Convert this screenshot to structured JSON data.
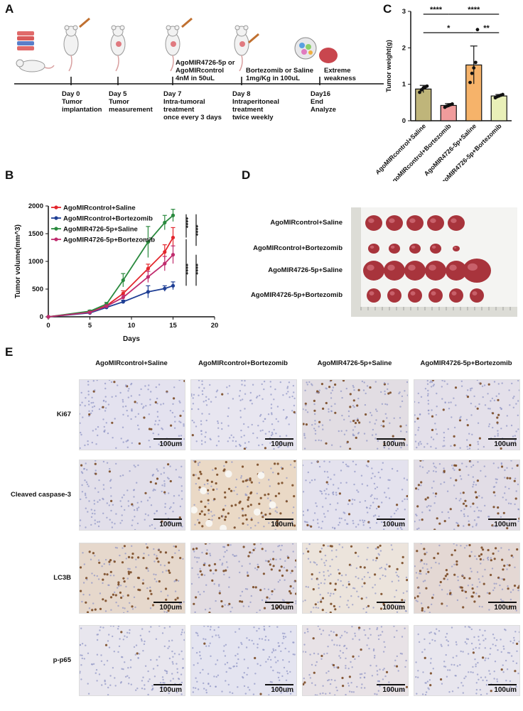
{
  "panels": {
    "a": "A",
    "b": "B",
    "c": "C",
    "d": "D",
    "e": "E"
  },
  "timeline": {
    "days": [
      {
        "day": "Day 0",
        "desc": "Tumor\nimplantation"
      },
      {
        "day": "Day 5",
        "desc": "Tumor\nmeasurement"
      },
      {
        "day": "Day 7",
        "desc": "Intra-tumoral\ntreatment\nonce every 3 days"
      },
      {
        "day": "Day 8",
        "desc": "Intraperitoneal\ntreatment\ntwice weekly"
      },
      {
        "day": "Day16",
        "desc": "End\nAnalyze"
      }
    ],
    "above": [
      "AgoMIR4726-5p or\nAgoMIRcontrol\n4nM in 50uL",
      "Bortezomib or Saline\n1mg/Kg in 100uL",
      "Extreme\nweakness"
    ],
    "colors": {
      "line": "#111111",
      "tumor": "#c9464e",
      "mouse": "#f2f2f2"
    }
  },
  "chart_data": [
    {
      "type": "line",
      "xlabel": "Days",
      "ylabel": "Tumor volume(mm^3)",
      "xlim": [
        0,
        20
      ],
      "ylim": [
        0,
        2000
      ],
      "xticks": [
        0,
        5,
        10,
        15,
        20
      ],
      "yticks": [
        0,
        500,
        1000,
        1500,
        2000
      ],
      "x": [
        0,
        5,
        7,
        9,
        12,
        14,
        15
      ],
      "series": [
        {
          "name": "AgoMIRcontrol+Saline",
          "color": "#e3262d",
          "values": [
            0,
            90,
            200,
            420,
            870,
            1170,
            1430
          ],
          "errors": [
            0,
            20,
            30,
            50,
            80,
            130,
            180
          ]
        },
        {
          "name": "AgoMIRcontrol+Bortezomib",
          "color": "#1f3f95",
          "values": [
            0,
            70,
            170,
            270,
            450,
            510,
            560
          ],
          "errors": [
            0,
            15,
            25,
            30,
            110,
            50,
            70
          ]
        },
        {
          "name": "AgoMIR4726-5p+Saline",
          "color": "#2a8a3e",
          "values": [
            0,
            100,
            230,
            660,
            1350,
            1700,
            1830
          ],
          "errors": [
            0,
            20,
            30,
            120,
            280,
            130,
            110
          ]
        },
        {
          "name": "AgoMIR4726-5p+Bortezomib",
          "color": "#c02c6e",
          "values": [
            0,
            80,
            190,
            350,
            720,
            960,
            1120
          ],
          "errors": [
            0,
            20,
            25,
            40,
            100,
            130,
            160
          ]
        }
      ],
      "significance": [
        "****",
        "****",
        "****",
        "****"
      ],
      "legend": "top-left"
    },
    {
      "type": "bar",
      "ylabel": "Tumor weight(g)",
      "ylim": [
        0,
        3
      ],
      "yticks": [
        0,
        1,
        2,
        3
      ],
      "categories": [
        "AgoMIRcontrol+Saline",
        "AgoMIRcontrol+Bortezomib",
        "AgoMIR4726-5p+Saline",
        "AgoMIR4726-5p+Bortezomib"
      ],
      "values": [
        0.87,
        0.42,
        1.53,
        0.68
      ],
      "errors": [
        0.1,
        0.05,
        0.52,
        0.04
      ],
      "colors": [
        "#bfb57a",
        "#f09c9c",
        "#f6b36a",
        "#e9f0b8"
      ],
      "points": [
        [
          0.78,
          0.85,
          0.9,
          0.92,
          0.95
        ],
        [
          0.37,
          0.4,
          0.42,
          0.44,
          0.46
        ],
        [
          1.05,
          1.3,
          1.45,
          1.6,
          2.5
        ],
        [
          0.63,
          0.66,
          0.68,
          0.7,
          0.72
        ]
      ],
      "significance": [
        {
          "a": 0,
          "b": 1,
          "label": "****"
        },
        {
          "a": 1,
          "b": 3,
          "label": "****"
        },
        {
          "a": 0,
          "b": 2,
          "label": "*"
        },
        {
          "a": 2,
          "b": 3,
          "label": "**"
        }
      ]
    }
  ],
  "tumor_photo": {
    "rows": [
      {
        "label": "AgoMIRcontrol+Saline",
        "count": 5
      },
      {
        "label": "AgoMIRcontrol+Bortezomib",
        "count": 5
      },
      {
        "label": "AgoMIR4726-5p+Saline",
        "count": 6
      },
      {
        "label": "AgoMIR4726-5p+Bortezomib",
        "count": 6
      }
    ],
    "colors": {
      "bg": "#f4f4f2",
      "tumor": "#a8343c",
      "ruler": "#dcdcd6"
    }
  },
  "ihc": {
    "columns": [
      "AgoMIRcontrol+Saline",
      "AgoMIRcontrol+Bortezomib",
      "AgoMIR4726-5p+Saline",
      "AgoMIR4726-5p+Bortezomib"
    ],
    "rows": [
      "Ki67",
      "Cleaved caspase-3",
      "LC3B",
      "p-p65"
    ],
    "scale": "100um",
    "colors": {
      "hematoxylin": "#8f94c4",
      "dab": "#7a4a25",
      "bg": "#e6e4ee"
    }
  }
}
